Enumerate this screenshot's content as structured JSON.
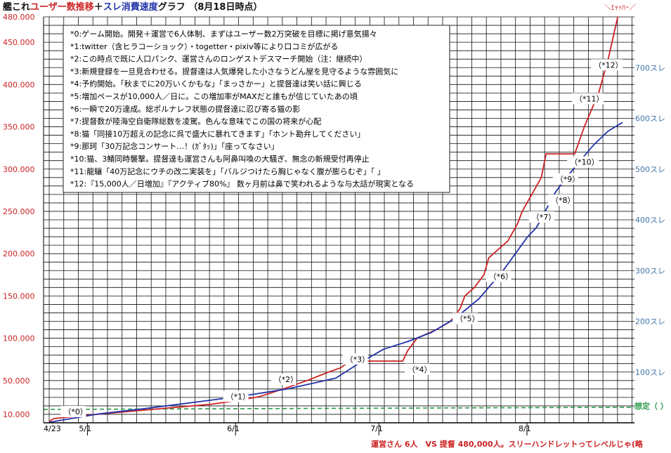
{
  "title": {
    "part1": "艦これ",
    "part2": "ユーザー数推移",
    "part3": "＋",
    "part4": "スレ消費速度",
    "part5": "グラフ （8月18日時点）"
  },
  "notes": [
    "*0:ゲーム開始。開発＋運営で6人体制、まずはユーザー数2万突破を目標に掲げ意気揚々",
    "*1:twitter（含ヒラコーショック）・togetter・pixiv等により口コミが広がる",
    "*2:この時点で既に人口パンク、運営さんのロンゲストデスマーチ開始（注：継続中）",
    "*3:新規登録を一旦見合わせる。提督達は人気爆発した小さなうどん屋を見守るような雰囲気に",
    "*4:予約開始。「秋までに20万いくかもな」「まっさかー」と提督達は笑い話に興じる",
    "*5:増加ペースが10,000人／日に。この増加率がMAXだと誰もが信じていたあの頃",
    "*6:一瞬で20万達成。総ポルナレフ状態の提督達に忍び寄る猫の影",
    "*7:提督数が陸海空自衛隊総数を凌駕。色んな意味でこの国の将来が心配",
    "*8:猫「同接10万超えの記念に呉で盛大に暴れてきます」「ホント勘弁してください」",
    "*9:那珂「30万記念コンサート…！(ｶﾞﾀｯ)」「座ってなさい」",
    "*10:猫、3鯖同時襲撃。提督達も運営さんも阿鼻叫喚の大騒ぎ、無念の新規受付再停止",
    "*11:龍驤「40万記念にウチの改二実装を」「バルジつけたら胸じゃなく腹が膨らむぞ」「 」",
    "*12:『15,000人／日増加』『アクティブ80%』 数ヶ月前は鼻で笑われるような与太話が現実となる"
  ],
  "target_label": "想定（ ）",
  "corner_note": "＼ﾋｬｯﾊｰ／",
  "footer": "運営さん 6人　VS 提督 480,000人。スリーハンドレットってレベルじゃ(略",
  "colors": {
    "users": "#cc2222",
    "threads": "#2233aa",
    "left_axis": "#cc2222",
    "right_axis": "#4477aa",
    "target": "#2a9a4a",
    "grid": "#111111"
  },
  "chart_data": {
    "type": "line",
    "x_axis": {
      "tick_labels": [
        "4/23",
        "5/1",
        "6/1",
        "7/1",
        "8/1"
      ],
      "tick_days": [
        0,
        8,
        39,
        69,
        100
      ],
      "range_days": [
        0,
        118
      ]
    },
    "y_axis_left": {
      "label": "ユーザー数",
      "ylim": [
        0,
        480000
      ],
      "tick_values": [
        10000,
        50000,
        100000,
        150000,
        200000,
        250000,
        300000,
        350000,
        400000,
        450000,
        480000
      ],
      "tick_labels": [
        "10.000",
        "50.000",
        "100.000",
        "150.000",
        "200.000",
        "250.000",
        "300.000",
        "350.000",
        "400.000",
        "450.000",
        "480.000"
      ]
    },
    "y_axis_right": {
      "label": "スレ消費",
      "scale_users_per_thread": 600,
      "tick_values": [
        100,
        200,
        300,
        400,
        500,
        600,
        700
      ],
      "tick_labels": [
        "100スレ",
        "200スレ",
        "300スレ",
        "400スレ",
        "500スレ",
        "600スレ",
        "700スレ"
      ]
    },
    "grid": true,
    "target_users": 20000,
    "series": [
      {
        "name": "ユーザー数",
        "axis": "left",
        "points": [
          [
            0,
            2000
          ],
          [
            1,
            5000
          ],
          [
            6,
            8000
          ],
          [
            14,
            12000
          ],
          [
            24,
            17000
          ],
          [
            34,
            22000
          ],
          [
            39,
            26000
          ],
          [
            44,
            31000
          ],
          [
            49,
            40000
          ],
          [
            54,
            50000
          ],
          [
            58,
            59000
          ],
          [
            61,
            65000
          ],
          [
            63,
            73000
          ],
          [
            68,
            73000
          ],
          [
            71,
            73000
          ],
          [
            74,
            73000
          ],
          [
            75,
            85000
          ],
          [
            77,
            100000
          ],
          [
            81,
            110000
          ],
          [
            84,
            120000
          ],
          [
            86,
            135000
          ],
          [
            87,
            150000
          ],
          [
            89,
            160000
          ],
          [
            91,
            175000
          ],
          [
            92,
            195000
          ],
          [
            94,
            205000
          ],
          [
            96,
            215000
          ],
          [
            98,
            235000
          ],
          [
            99,
            250000
          ],
          [
            101,
            270000
          ],
          [
            103,
            290000
          ],
          [
            104,
            318000
          ],
          [
            107,
            318000
          ],
          [
            110,
            318000
          ],
          [
            112,
            350000
          ],
          [
            115,
            390000
          ],
          [
            117,
            430000
          ],
          [
            119,
            480000
          ]
        ]
      },
      {
        "name": "スレ消費",
        "axis": "right",
        "points": [
          [
            0,
            1
          ],
          [
            10,
            17
          ],
          [
            20,
            28
          ],
          [
            30,
            40
          ],
          [
            40,
            52
          ],
          [
            50,
            67
          ],
          [
            60,
            88
          ],
          [
            65,
            118
          ],
          [
            70,
            145
          ],
          [
            75,
            160
          ],
          [
            80,
            178
          ],
          [
            85,
            206
          ],
          [
            90,
            245
          ],
          [
            95,
            300
          ],
          [
            100,
            365
          ],
          [
            102,
            385
          ],
          [
            104,
            420
          ],
          [
            106,
            455
          ],
          [
            108,
            480
          ],
          [
            111,
            515
          ],
          [
            114,
            548
          ],
          [
            117,
            575
          ],
          [
            120,
            592
          ]
        ]
      }
    ],
    "annotations": [
      {
        "label": "（*0）",
        "day": 3,
        "value": 10000
      },
      {
        "label": "（*1）",
        "day": 37,
        "value": 28000
      },
      {
        "label": "（*2）",
        "day": 47,
        "value": 48000
      },
      {
        "label": "（*3）",
        "day": 62,
        "value": 72000
      },
      {
        "label": "（*4）",
        "day": 75,
        "value": 60000
      },
      {
        "label": "（*5）",
        "day": 85,
        "value": 120000
      },
      {
        "label": "（*6）",
        "day": 92,
        "value": 170000
      },
      {
        "label": "（*7）",
        "day": 101,
        "value": 240000
      },
      {
        "label": "（*8）",
        "day": 105,
        "value": 260000
      },
      {
        "label": "（*9）",
        "day": 106,
        "value": 285000
      },
      {
        "label": "（*10）",
        "day": 109,
        "value": 305000
      },
      {
        "label": "（*11）",
        "day": 110,
        "value": 380000
      },
      {
        "label": "（*12）",
        "day": 114,
        "value": 420000
      }
    ]
  }
}
